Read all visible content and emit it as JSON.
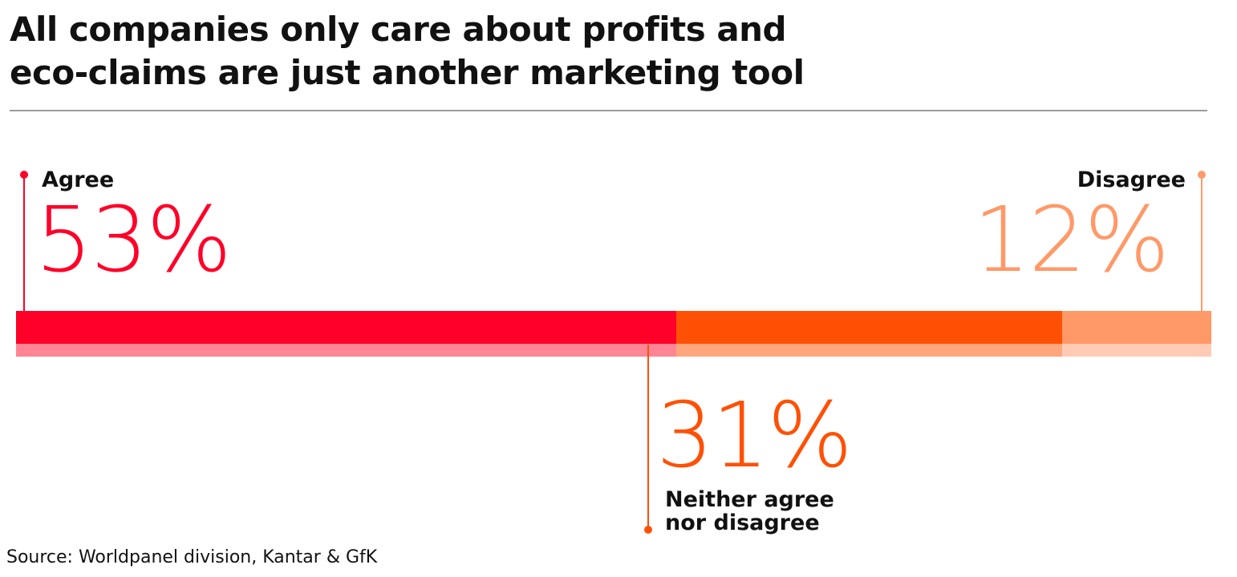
{
  "title_lines": [
    "All companies only care about profits and",
    "eco-claims are just another marketing tool"
  ],
  "source": "Source: Worldpanel division, Kantar & GfK",
  "chart_data": {
    "type": "bar",
    "orientation": "horizontal-stacked",
    "title": "All companies only care about profits and eco-claims are just another marketing tool",
    "categories": [
      "Agree",
      "Neither agree nor disagree",
      "Disagree"
    ],
    "values": [
      53,
      31,
      12
    ],
    "display": {
      "agree": {
        "label": "Agree",
        "value_text": "53%"
      },
      "neither": {
        "label_lines": [
          "Neither agree",
          "nor disagree"
        ],
        "value_text": "31%"
      },
      "disagree": {
        "label": "Disagree",
        "value_text": "12%"
      }
    },
    "colors": {
      "agree": "#ff0028",
      "agree_shadow": "#ff8595",
      "neither": "#ff5005",
      "neither_shadow": "#ffa67d",
      "disagree": "#ff9968",
      "disagree_shadow": "#ffcbb4"
    }
  }
}
